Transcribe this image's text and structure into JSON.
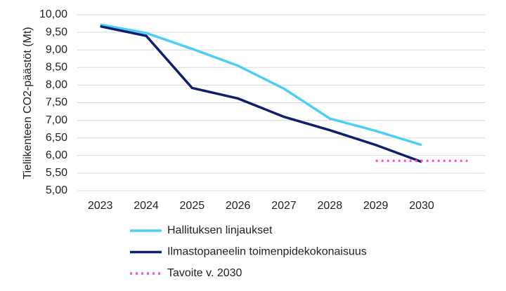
{
  "chart_data": {
    "type": "line",
    "y_label": "Tieliikenteen CO2-päästöt (Mt)",
    "categories": [
      "2023",
      "2024",
      "2025",
      "2026",
      "2027",
      "2028",
      "2029",
      "2030",
      null
    ],
    "series": [
      {
        "name": "Hallituksen linjaukset",
        "color": "#4dcff5",
        "style": "solid",
        "values": [
          9.72,
          9.48,
          9.03,
          8.55,
          7.9,
          7.05,
          6.7,
          6.3,
          null
        ]
      },
      {
        "name": "Ilmastopaneelin toimenpidekokonaisuus",
        "color": "#0d1f6e",
        "style": "solid",
        "values": [
          9.67,
          9.4,
          7.92,
          7.62,
          7.1,
          6.72,
          6.3,
          5.82,
          null
        ]
      },
      {
        "name": "Tavoite v. 2030",
        "color": "#ff55c8",
        "style": "dotted",
        "values": [
          null,
          null,
          null,
          null,
          null,
          null,
          5.85,
          5.85,
          5.85
        ]
      }
    ],
    "ylim": [
      5,
      10
    ],
    "yticks": [
      {
        "value": 5,
        "label": "5,00"
      },
      {
        "value": 5.5,
        "label": "5,50"
      },
      {
        "value": 6,
        "label": "6,00"
      },
      {
        "value": 6.5,
        "label": "6,50"
      },
      {
        "value": 7,
        "label": "7,00"
      },
      {
        "value": 7.5,
        "label": "7,50"
      },
      {
        "value": 8,
        "label": "8,00"
      },
      {
        "value": 8.5,
        "label": "8,50"
      },
      {
        "value": 9,
        "label": "9,00"
      },
      {
        "value": 9.5,
        "label": "9,50"
      },
      {
        "value": 10,
        "label": "10,00"
      }
    ],
    "grid": true,
    "legend": "bottom"
  }
}
